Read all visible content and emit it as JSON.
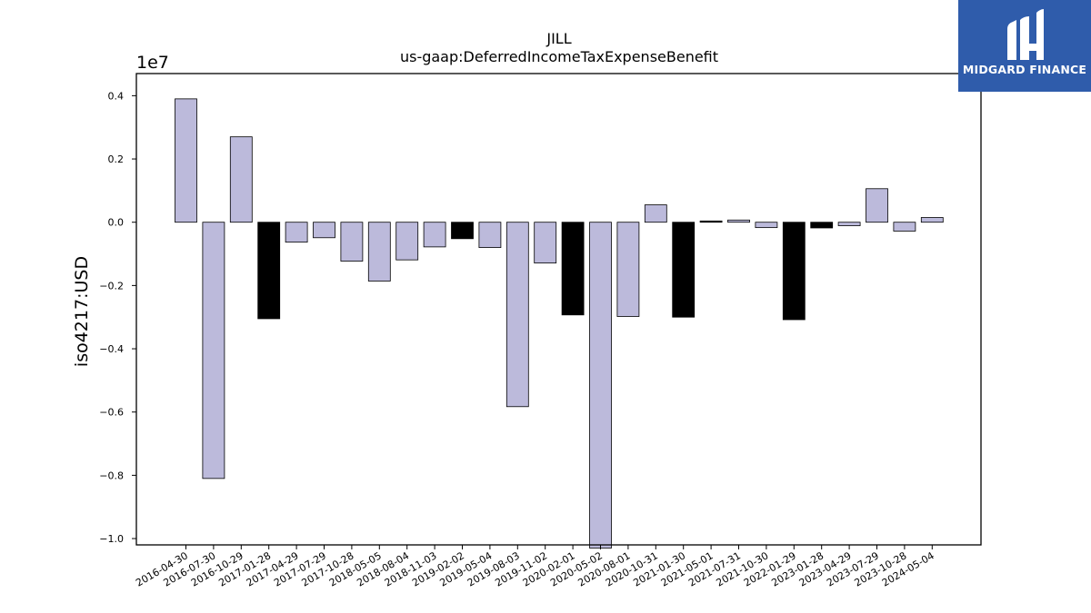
{
  "chart_data": {
    "type": "bar",
    "title": "JILL",
    "subtitle": "us-gaap:DeferredIncomeTaxExpenseBenefit",
    "ylabel": "iso4217:USD",
    "xlabel": "",
    "y_multiplier_label": "1e7",
    "ylim": [
      -1.02,
      0.47
    ],
    "yticks": [
      -1.0,
      -0.8,
      -0.6,
      -0.4,
      -0.2,
      0.0,
      0.2,
      0.4
    ],
    "ytick_labels": [
      "−1.0",
      "−0.8",
      "−0.6",
      "−0.4",
      "−0.2",
      "0.0",
      "0.2",
      "0.4"
    ],
    "grid": false,
    "categories": [
      "2016-04-30",
      "2016-07-30",
      "2016-10-29",
      "2017-01-28",
      "2017-04-29",
      "2017-07-29",
      "2017-10-28",
      "2018-05-05",
      "2018-08-04",
      "2018-11-03",
      "2019-02-02",
      "2019-05-04",
      "2019-08-03",
      "2019-11-02",
      "2020-02-01",
      "2020-05-02",
      "2020-08-01",
      "2020-10-31",
      "2021-01-30",
      "2021-05-01",
      "2021-07-31",
      "2021-10-30",
      "2022-01-29",
      "2023-01-28",
      "2023-04-29",
      "2023-07-29",
      "2023-10-28",
      "2024-05-04"
    ],
    "values": [
      0.39,
      -0.81,
      0.27,
      -0.305,
      -0.063,
      -0.049,
      -0.123,
      -0.186,
      -0.119,
      -0.078,
      -0.052,
      -0.08,
      -0.583,
      -0.129,
      -0.293,
      -1.03,
      -0.298,
      0.055,
      -0.3,
      0.004,
      0.007,
      -0.017,
      -0.308,
      -0.018,
      -0.011,
      0.106,
      -0.028,
      0.015
    ],
    "bar_colors": [
      "#bcbadb",
      "#bcbadb",
      "#bcbadb",
      "#000000",
      "#bcbadb",
      "#bcbadb",
      "#bcbadb",
      "#bcbadb",
      "#bcbadb",
      "#bcbadb",
      "#000000",
      "#bcbadb",
      "#bcbadb",
      "#bcbadb",
      "#000000",
      "#bcbadb",
      "#bcbadb",
      "#bcbadb",
      "#000000",
      "#000000",
      "#bcbadb",
      "#bcbadb",
      "#000000",
      "#000000",
      "#bcbadb",
      "#bcbadb",
      "#bcbadb",
      "#bcbadb"
    ]
  },
  "logo": {
    "text": "MIDGARD FINANCE",
    "background": "#2f5cab"
  }
}
